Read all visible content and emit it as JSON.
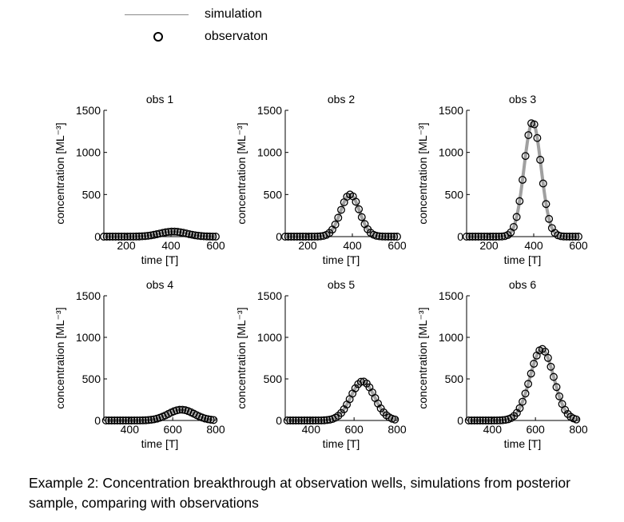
{
  "legend": {
    "simulation_label": "simulation",
    "observation_label": "observaton"
  },
  "caption": "Example 2: Concentration breakthrough at observation wells, simulations from posterior sample, comparing with observations",
  "colors": {
    "simulation": "#a0a0a0",
    "observation": "#000000"
  },
  "chart_data": [
    {
      "type": "line",
      "title": "obs 1",
      "xlabel": "time [T]",
      "ylabel": "concentration [ML⁻³]",
      "xlim": [
        100,
        600
      ],
      "ylim": [
        0,
        1500
      ],
      "xticks": [
        200,
        400,
        600
      ],
      "yticks": [
        0,
        500,
        1000,
        1500
      ],
      "peak": {
        "t": 410,
        "c": 60,
        "sigma": 60
      },
      "t_start": 100,
      "t_end": 600
    },
    {
      "type": "line",
      "title": "obs 2",
      "xlabel": "time [T]",
      "ylabel": "concentration [ML⁻³]",
      "xlim": [
        100,
        600
      ],
      "ylim": [
        0,
        1500
      ],
      "xticks": [
        200,
        400,
        600
      ],
      "yticks": [
        0,
        500,
        1000,
        1500
      ],
      "peak": {
        "t": 390,
        "c": 500,
        "sigma": 42
      },
      "t_start": 100,
      "t_end": 600
    },
    {
      "type": "line",
      "title": "obs 3",
      "xlabel": "time [T]",
      "ylabel": "concentration [ML⁻³]",
      "xlim": [
        100,
        600
      ],
      "ylim": [
        0,
        1500
      ],
      "xticks": [
        200,
        400,
        600
      ],
      "yticks": [
        0,
        500,
        1000,
        1500
      ],
      "peak": {
        "t": 395,
        "c": 1360,
        "sigma": 38
      },
      "t_start": 100,
      "t_end": 600
    },
    {
      "type": "line",
      "title": "obs 4",
      "xlabel": "time [T]",
      "ylabel": "concentration [ML⁻³]",
      "xlim": [
        280,
        800
      ],
      "ylim": [
        0,
        1500
      ],
      "xticks": [
        400,
        600,
        800
      ],
      "yticks": [
        0,
        500,
        1000,
        1500
      ],
      "peak": {
        "t": 640,
        "c": 130,
        "sigma": 60
      },
      "t_start": 290,
      "t_end": 790
    },
    {
      "type": "line",
      "title": "obs 5",
      "xlabel": "time [T]",
      "ylabel": "concentration [ML⁻³]",
      "xlim": [
        280,
        800
      ],
      "ylim": [
        0,
        1500
      ],
      "xticks": [
        400,
        600,
        800
      ],
      "yticks": [
        0,
        500,
        1000,
        1500
      ],
      "peak": {
        "t": 640,
        "c": 470,
        "sigma": 55
      },
      "t_start": 290,
      "t_end": 790
    },
    {
      "type": "line",
      "title": "obs 6",
      "xlabel": "time [T]",
      "ylabel": "concentration [ML⁻³]",
      "xlim": [
        280,
        800
      ],
      "ylim": [
        0,
        1500
      ],
      "xticks": [
        400,
        600,
        800
      ],
      "yticks": [
        0,
        500,
        1000,
        1500
      ],
      "peak": {
        "t": 630,
        "c": 860,
        "sigma": 55
      },
      "t_start": 290,
      "t_end": 790
    }
  ]
}
